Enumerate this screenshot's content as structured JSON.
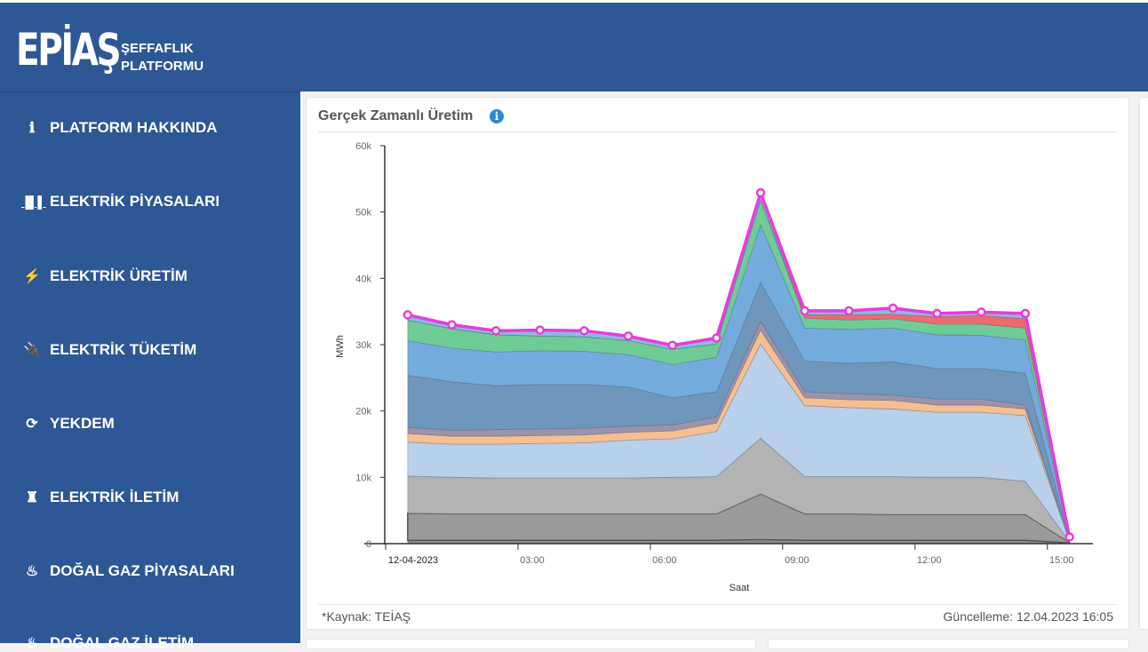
{
  "header": {
    "logo_main": "EPİAŞ",
    "logo_line1": "ŞEFFAFLIK",
    "logo_line2": "PLATFORMU"
  },
  "sidebar": {
    "items": [
      {
        "label": "PLATFORM HAKKINDA",
        "icon": "info-circle-icon"
      },
      {
        "label": "ELEKTRİK PİYASALARI",
        "icon": "bar-chart-icon"
      },
      {
        "label": "ELEKTRİK ÜRETİM",
        "icon": "lightning-icon"
      },
      {
        "label": "ELEKTRİK TÜKETİM",
        "icon": "plug-icon"
      },
      {
        "label": "YEKDEM",
        "icon": "refresh-icon"
      },
      {
        "label": "ELEKTRİK İLETİM",
        "icon": "transmission-tower-icon"
      },
      {
        "label": "DOĞAL GAZ PİYASALARI",
        "icon": "flame-icon"
      },
      {
        "label": "DOĞAL GAZ İLETİM",
        "icon": "flame-icon"
      }
    ]
  },
  "card": {
    "title": "Gerçek Zamanlı Üretim",
    "info_icon": "info-circle-icon",
    "source": "*Kaynak: TEİAŞ",
    "updated": "Güncelleme: 12.04.2023 16:05"
  },
  "chart_data": {
    "type": "area",
    "stacked": true,
    "title": "Gerçek Zamanlı Üretim",
    "xlabel": "Saat",
    "ylabel": "MWh",
    "ylim": [
      0,
      60000
    ],
    "yticks": [
      "0",
      "10k",
      "20k",
      "30k",
      "40k",
      "50k",
      "60k"
    ],
    "xticks": [
      "12-04-2023",
      "03:00",
      "06:00",
      "09:00",
      "12:00",
      "15:00"
    ],
    "x": [
      0.5,
      1.5,
      2.5,
      3.5,
      4.5,
      5.5,
      6.5,
      7.5,
      8.5,
      9.5,
      10.5,
      11.5,
      12.5,
      13.5,
      14.5,
      15.5
    ],
    "grid": false,
    "legend": "none",
    "series": [
      {
        "color": "#8c8c8c",
        "values": [
          500,
          500,
          500,
          500,
          500,
          500,
          500,
          500,
          600,
          500,
          500,
          500,
          500,
          500,
          500,
          100
        ]
      },
      {
        "color": "#9a9a9a",
        "values": [
          4100,
          4000,
          4000,
          4000,
          4000,
          4000,
          4000,
          4000,
          6900,
          4000,
          4000,
          3900,
          3900,
          3900,
          3900,
          100
        ]
      },
      {
        "color": "#b3b3b3",
        "values": [
          5600,
          5500,
          5400,
          5400,
          5400,
          5400,
          5500,
          5600,
          8400,
          5600,
          5600,
          5700,
          5600,
          5600,
          5000,
          100
        ]
      },
      {
        "color": "#b9d0ea",
        "values": [
          5100,
          5000,
          5100,
          5200,
          5300,
          5700,
          5800,
          6800,
          14200,
          10700,
          10400,
          10200,
          9800,
          9800,
          9900,
          200
        ]
      },
      {
        "color": "#f7be8f",
        "values": [
          1300,
          1200,
          1200,
          1200,
          1200,
          1200,
          1200,
          1300,
          2100,
          1200,
          1200,
          1300,
          1100,
          1100,
          1000,
          0
        ]
      },
      {
        "color": "#9c93ad",
        "values": [
          900,
          900,
          1000,
          1000,
          1000,
          900,
          900,
          900,
          1300,
          900,
          900,
          800,
          900,
          900,
          600,
          0
        ]
      },
      {
        "color": "#6f97bb",
        "values": [
          7900,
          7300,
          6600,
          6700,
          6600,
          5900,
          4100,
          3800,
          5900,
          4600,
          4600,
          5000,
          4600,
          4600,
          4800,
          200
        ]
      },
      {
        "color": "#74abdd",
        "values": [
          5200,
          5100,
          5100,
          5100,
          5000,
          4900,
          5000,
          5200,
          8700,
          5000,
          5100,
          5100,
          5100,
          5000,
          5000,
          200
        ]
      },
      {
        "color": "#6fcc96",
        "values": [
          3100,
          2900,
          2600,
          2200,
          2200,
          2100,
          2300,
          2000,
          3700,
          1500,
          1400,
          1400,
          1600,
          1700,
          1800,
          0
        ]
      },
      {
        "color": "#ef6a6e",
        "values": [
          0,
          0,
          0,
          0,
          0,
          0,
          0,
          0,
          0,
          500,
          800,
          700,
          1100,
          1300,
          1400,
          0
        ]
      },
      {
        "color": "#8fb8de",
        "values": [
          800,
          600,
          600,
          900,
          900,
          700,
          600,
          900,
          1100,
          600,
          600,
          900,
          500,
          500,
          800,
          100
        ]
      }
    ],
    "total_line": {
      "color": "#e83be0"
    }
  }
}
